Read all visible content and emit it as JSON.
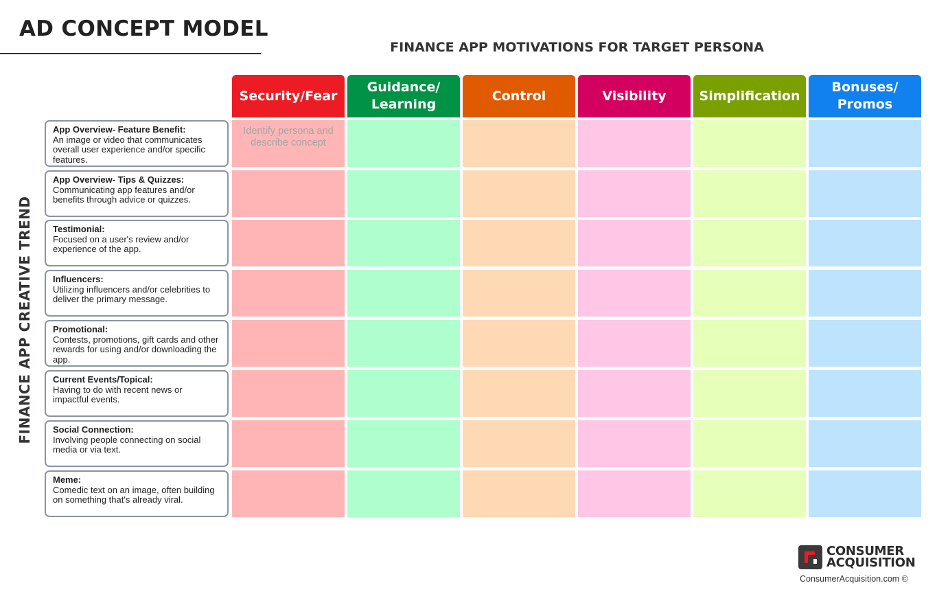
{
  "title": "AD CONCEPT MODEL",
  "subtitle": "FINANCE APP MOTIVATIONS FOR TARGET PERSONA",
  "side_label": "FINANCE APP CREATIVE TREND",
  "motivations": [
    {
      "label": "Security/Fear",
      "color": "#ed1c24",
      "cell_color": "#ffb5b5"
    },
    {
      "label": "Guidance/ Learning",
      "color": "#009245",
      "cell_color": "#aeffcd"
    },
    {
      "label": "Control",
      "color": "#e05a00",
      "cell_color": "#ffd9b4"
    },
    {
      "label": "Visibility",
      "color": "#d4005f",
      "cell_color": "#ffc6e6"
    },
    {
      "label": "Simplification",
      "color": "#7aa000",
      "cell_color": "#e6ffb9"
    },
    {
      "label": "Bonuses/ Promos",
      "color": "#1181ee",
      "cell_color": "#bde3fd"
    }
  ],
  "trends": [
    {
      "name": "App Overview- Feature Benefit:",
      "desc": "An image or video that communicates overall user experience and/or specific features."
    },
    {
      "name": "App Overview- Tips & Quizzes:",
      "desc": "Communicating app features and/or benefits through advice or quizzes."
    },
    {
      "name": "Testimonial:",
      "desc": "Focused on a user's review and/or experience of the app."
    },
    {
      "name": "Influencers:",
      "desc": "Utilizing influencers and/or celebrities to deliver the primary message."
    },
    {
      "name": "Promotional:",
      "desc": "Contests, promotions, gift cards and other rewards for using and/or downloading the app."
    },
    {
      "name": "Current Events/Topical:",
      "desc": "Having to do with recent news or impactful events."
    },
    {
      "name": "Social Connection:",
      "desc": "Involving people connecting on social media or via text."
    },
    {
      "name": "Meme:",
      "desc": "Comedic text on an image, often building on something that's already viral."
    }
  ],
  "cell_note": "Identify persona and describe concept",
  "logo": {
    "line1": "CONSUMER",
    "line2": "ACQUISITION",
    "url": "ConsumerAcquisition.com ©",
    "mark_color": "#ed1c24",
    "dark_color": "#3a3a3a"
  }
}
